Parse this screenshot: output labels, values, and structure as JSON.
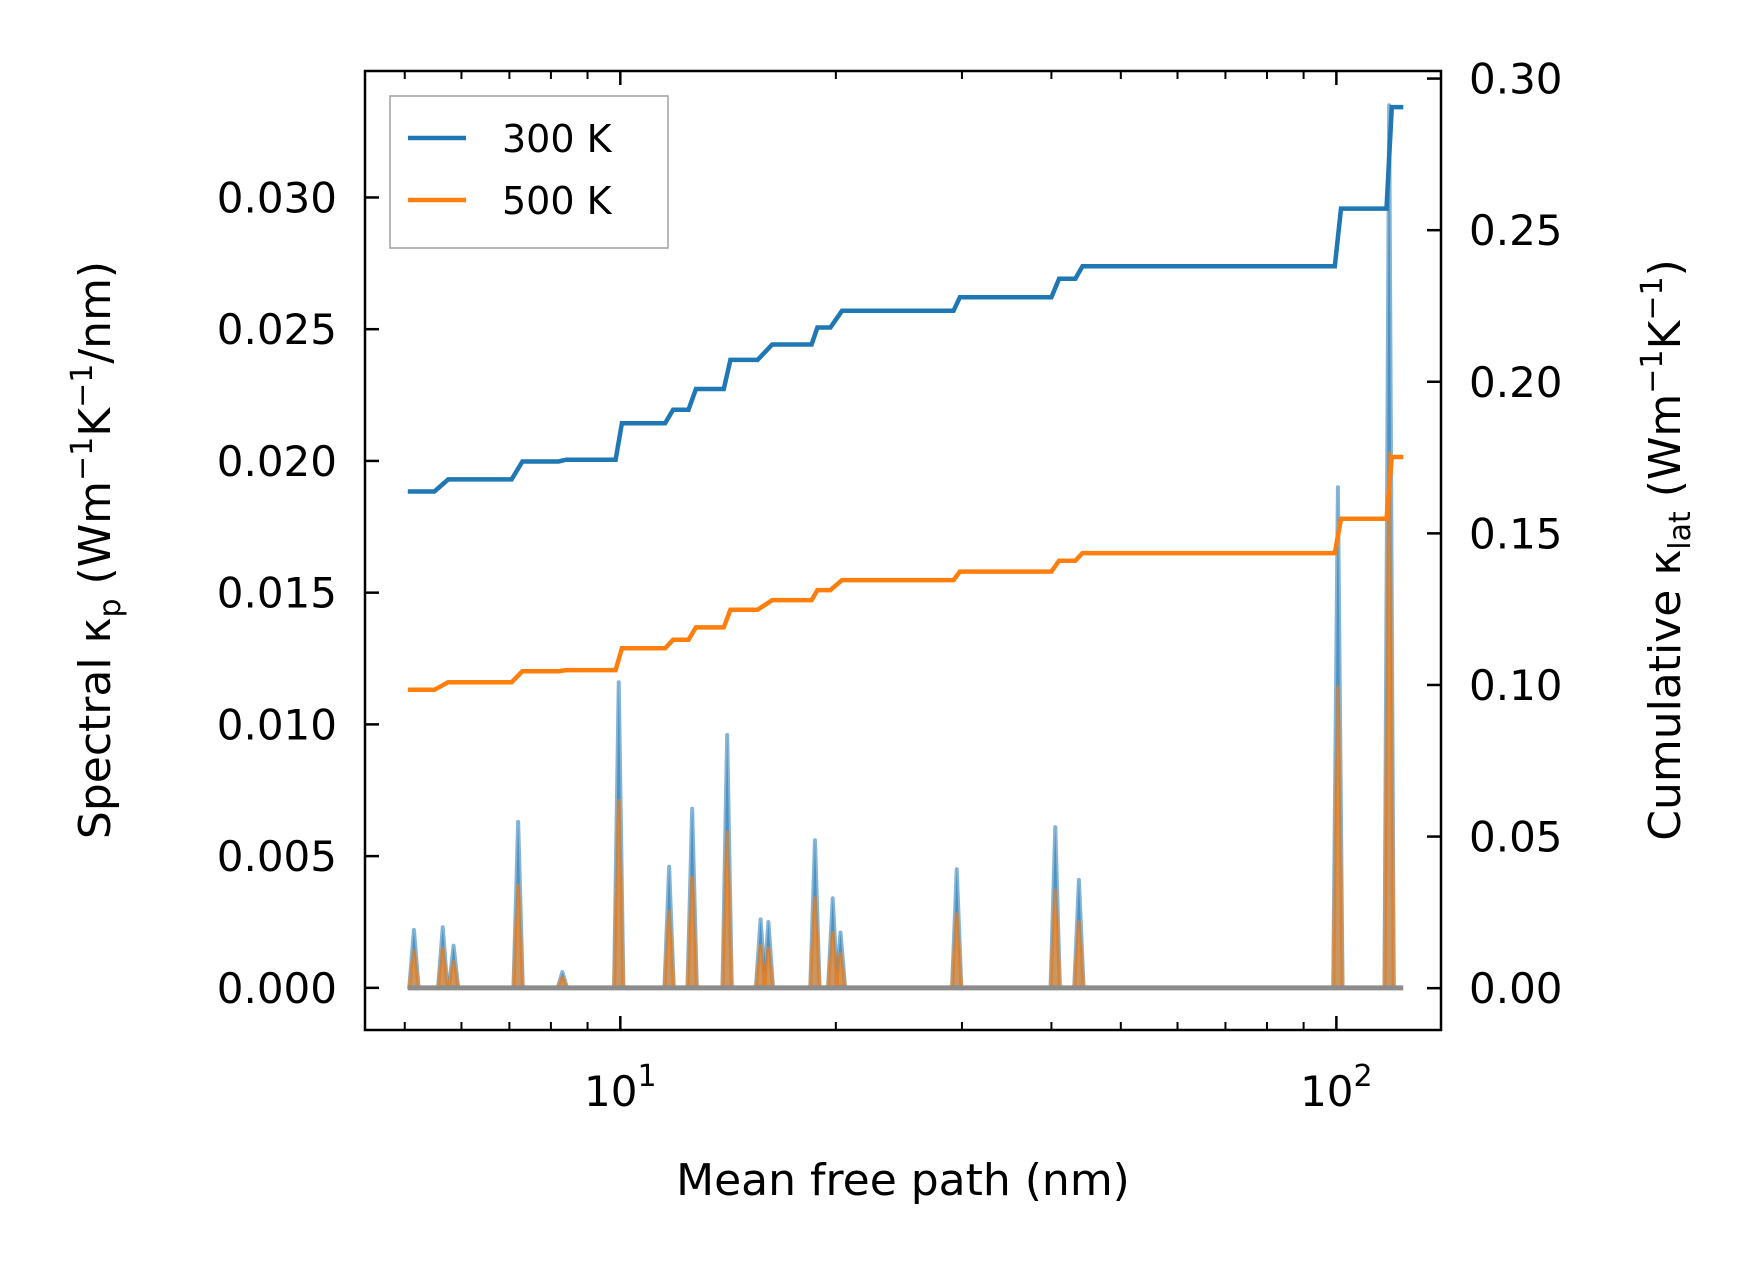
{
  "chart_data": {
    "type": "line",
    "xlabel": "Mean free path (nm)",
    "ylabel_left": "Spectral κ",
    "ylabel_left_sub": "p",
    "ylabel_left_unit": " (Wm",
    "ylabel_left_exp1": "−1",
    "ylabel_left_unit2": "K",
    "ylabel_left_exp2": "−1",
    "ylabel_left_unit3": "/nm)",
    "ylabel_right": "Cumulative κ",
    "ylabel_right_sub": "lat",
    "ylabel_right_unit": " (Wm",
    "ylabel_right_exp1": "−1",
    "ylabel_right_unit2": "K",
    "ylabel_right_exp2": "−1",
    "ylabel_right_unit3": ")",
    "x_scale": "log",
    "xlim": [
      4.4,
      140
    ],
    "ylim_left": [
      -0.0016,
      0.0348
    ],
    "ylim_right": [
      -0.0138,
      0.3025
    ],
    "x_ticks": [
      {
        "value": 10,
        "base": "10",
        "exp": "1"
      },
      {
        "value": 100,
        "base": "10",
        "exp": "2"
      }
    ],
    "y_left_ticks": [
      0.0,
      0.005,
      0.01,
      0.015,
      0.02,
      0.025,
      0.03
    ],
    "y_left_tick_labels": [
      "0.000",
      "0.005",
      "0.010",
      "0.015",
      "0.020",
      "0.025",
      "0.030"
    ],
    "y_right_ticks": [
      0.0,
      0.05,
      0.1,
      0.15,
      0.2,
      0.25,
      0.3
    ],
    "y_right_tick_labels": [
      "0.00",
      "0.05",
      "0.10",
      "0.15",
      "0.20",
      "0.25",
      "0.30"
    ],
    "legend": {
      "position": "top-left",
      "entries": [
        "300 K",
        "500 K"
      ]
    },
    "colors": {
      "300 K": "#1f77b4",
      "500 K": "#ff7f0e"
    },
    "spectral_series": [
      {
        "name": "300 K",
        "peaks": [
          {
            "x": 5.15,
            "y": 0.0022
          },
          {
            "x": 5.65,
            "y": 0.0023
          },
          {
            "x": 5.85,
            "y": 0.0016
          },
          {
            "x": 7.2,
            "y": 0.0063
          },
          {
            "x": 8.3,
            "y": 0.0006
          },
          {
            "x": 9.95,
            "y": 0.0116
          },
          {
            "x": 11.7,
            "y": 0.0046
          },
          {
            "x": 12.6,
            "y": 0.0068
          },
          {
            "x": 14.1,
            "y": 0.0096
          },
          {
            "x": 15.7,
            "y": 0.0026
          },
          {
            "x": 16.1,
            "y": 0.0025
          },
          {
            "x": 18.7,
            "y": 0.0056
          },
          {
            "x": 19.8,
            "y": 0.0034
          },
          {
            "x": 20.3,
            "y": 0.0021
          },
          {
            "x": 29.5,
            "y": 0.0045
          },
          {
            "x": 40.5,
            "y": 0.0061
          },
          {
            "x": 43.7,
            "y": 0.0041
          },
          {
            "x": 100.5,
            "y": 0.019
          },
          {
            "x": 118.5,
            "y": 0.0335
          }
        ]
      },
      {
        "name": "500 K",
        "peaks": [
          {
            "x": 5.15,
            "y": 0.0014
          },
          {
            "x": 5.65,
            "y": 0.0015
          },
          {
            "x": 5.85,
            "y": 0.001
          },
          {
            "x": 7.2,
            "y": 0.0039
          },
          {
            "x": 8.3,
            "y": 0.0004
          },
          {
            "x": 9.95,
            "y": 0.0071
          },
          {
            "x": 11.7,
            "y": 0.0029
          },
          {
            "x": 12.6,
            "y": 0.0042
          },
          {
            "x": 14.1,
            "y": 0.0059
          },
          {
            "x": 15.7,
            "y": 0.0016
          },
          {
            "x": 16.1,
            "y": 0.0015
          },
          {
            "x": 18.7,
            "y": 0.0034
          },
          {
            "x": 19.8,
            "y": 0.0021
          },
          {
            "x": 20.3,
            "y": 0.0013
          },
          {
            "x": 29.5,
            "y": 0.0028
          },
          {
            "x": 40.5,
            "y": 0.0037
          },
          {
            "x": 43.7,
            "y": 0.0025
          },
          {
            "x": 100.5,
            "y": 0.0114
          },
          {
            "x": 118.5,
            "y": 0.0203
          }
        ]
      }
    ],
    "cumulative_series": [
      {
        "name": "300 K",
        "points": [
          [
            5.05,
            0.1638
          ],
          [
            5.5,
            0.1638
          ],
          [
            5.75,
            0.1678
          ],
          [
            7.05,
            0.1678
          ],
          [
            7.3,
            0.1737
          ],
          [
            8.2,
            0.1737
          ],
          [
            8.4,
            0.1743
          ],
          [
            9.85,
            0.1743
          ],
          [
            10.05,
            0.1863
          ],
          [
            11.55,
            0.1863
          ],
          [
            11.85,
            0.1908
          ],
          [
            12.45,
            0.1908
          ],
          [
            12.75,
            0.1976
          ],
          [
            13.95,
            0.1976
          ],
          [
            14.25,
            0.2072
          ],
          [
            15.55,
            0.2072
          ],
          [
            16.3,
            0.2123
          ],
          [
            18.5,
            0.2123
          ],
          [
            18.85,
            0.2179
          ],
          [
            19.65,
            0.2179
          ],
          [
            20.4,
            0.2234
          ],
          [
            29.2,
            0.2234
          ],
          [
            29.8,
            0.2279
          ],
          [
            40.0,
            0.2279
          ],
          [
            41.0,
            0.234
          ],
          [
            43.2,
            0.234
          ],
          [
            44.2,
            0.2381
          ],
          [
            99.5,
            0.2381
          ],
          [
            101.5,
            0.2571
          ],
          [
            117.5,
            0.2571
          ],
          [
            119.5,
            0.2906
          ],
          [
            124.0,
            0.2906
          ]
        ]
      },
      {
        "name": "500 K",
        "points": [
          [
            5.05,
            0.0984
          ],
          [
            5.5,
            0.0984
          ],
          [
            5.75,
            0.1009
          ],
          [
            7.05,
            0.1009
          ],
          [
            7.3,
            0.1045
          ],
          [
            8.2,
            0.1045
          ],
          [
            8.4,
            0.1049
          ],
          [
            9.85,
            0.1049
          ],
          [
            10.05,
            0.1121
          ],
          [
            11.55,
            0.1121
          ],
          [
            11.85,
            0.1149
          ],
          [
            12.45,
            0.1149
          ],
          [
            12.75,
            0.119
          ],
          [
            13.95,
            0.119
          ],
          [
            14.25,
            0.1248
          ],
          [
            15.55,
            0.1248
          ],
          [
            16.3,
            0.128
          ],
          [
            18.5,
            0.128
          ],
          [
            18.85,
            0.1313
          ],
          [
            19.65,
            0.1313
          ],
          [
            20.4,
            0.1346
          ],
          [
            29.2,
            0.1346
          ],
          [
            29.8,
            0.1374
          ],
          [
            40.0,
            0.1374
          ],
          [
            41.0,
            0.141
          ],
          [
            43.2,
            0.141
          ],
          [
            44.2,
            0.1435
          ],
          [
            99.5,
            0.1435
          ],
          [
            101.5,
            0.1548
          ],
          [
            117.5,
            0.1548
          ],
          [
            119.5,
            0.1752
          ],
          [
            124.0,
            0.1752
          ]
        ]
      }
    ]
  }
}
